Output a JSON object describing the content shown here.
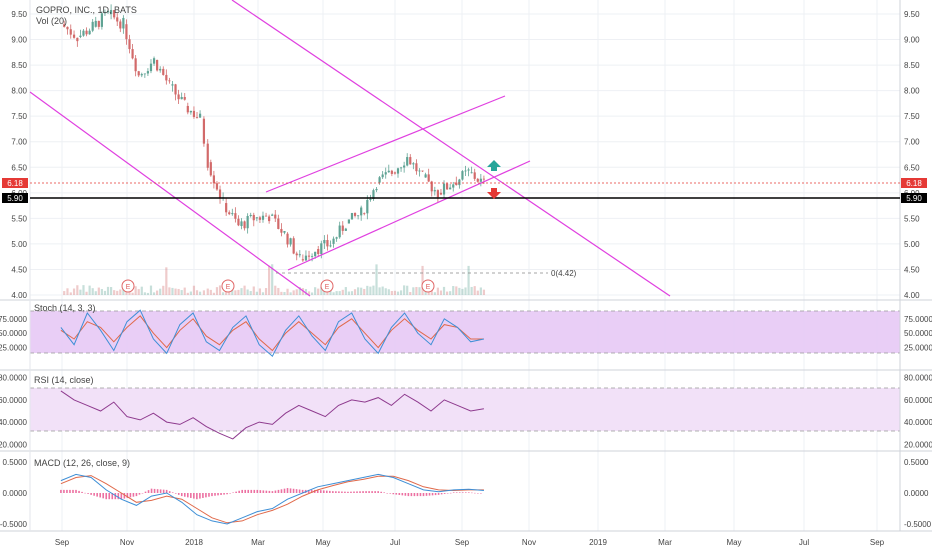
{
  "colors": {
    "up": "#5fa394",
    "down": "#d26a6a",
    "trendline": "#e040e0",
    "stoch_k": "#3e8fd6",
    "stoch_d": "#e0694a",
    "rsi": "#8e3a8e",
    "macd": "#3e8fd6",
    "signal": "#e0694a",
    "hist": "#e74c8a",
    "band_fill": "#e7c9f5",
    "grid": "#eef0f4",
    "current_price": "#e53935",
    "support": "#000000",
    "arrow_up": "#26a69a",
    "arrow_down": "#e53935"
  },
  "icons": {
    "arrow_up": "arrow-up-icon",
    "arrow_down": "arrow-down-icon",
    "earnings": "earnings-marker-icon"
  },
  "chart_data": {
    "type": "candlestick",
    "symbol_title": "GOPRO, INC., 1D, BATS",
    "volume_label": "Vol (20)",
    "x_ticks": [
      "Sep",
      "Nov",
      "2018",
      "Mar",
      "May",
      "Jul",
      "Sep",
      "Nov",
      "2019",
      "Mar",
      "May",
      "Jul",
      "Sep"
    ],
    "price_axis": {
      "ticks": [
        "9.50",
        "9.00",
        "8.50",
        "8.00",
        "7.50",
        "7.00",
        "6.50",
        "6.00",
        "5.50",
        "5.00",
        "4.50",
        "4.00"
      ],
      "range": [
        4.0,
        9.6
      ]
    },
    "current_price": "6.18",
    "support_price": "5.90",
    "low_annotation": "0(4.42)",
    "earnings_marker": "E",
    "price_series": [
      {
        "date": "2017-08-31",
        "close": 9.3
      },
      {
        "date": "2017-09-15",
        "close": 9.05
      },
      {
        "date": "2017-09-29",
        "close": 9.25
      },
      {
        "date": "2017-10-13",
        "close": 9.5
      },
      {
        "date": "2017-10-27",
        "close": 9.3
      },
      {
        "date": "2017-11-10",
        "close": 8.3
      },
      {
        "date": "2017-11-24",
        "close": 8.6
      },
      {
        "date": "2017-12-08",
        "close": 8.1
      },
      {
        "date": "2017-12-22",
        "close": 7.7
      },
      {
        "date": "2018-01-05",
        "close": 7.45
      },
      {
        "date": "2018-01-12",
        "close": 6.6
      },
      {
        "date": "2018-01-26",
        "close": 5.8
      },
      {
        "date": "2018-02-09",
        "close": 5.35
      },
      {
        "date": "2018-02-23",
        "close": 5.5
      },
      {
        "date": "2018-03-09",
        "close": 5.55
      },
      {
        "date": "2018-03-23",
        "close": 5.2
      },
      {
        "date": "2018-04-06",
        "close": 4.7
      },
      {
        "date": "2018-04-20",
        "close": 4.9
      },
      {
        "date": "2018-05-04",
        "close": 5.0
      },
      {
        "date": "2018-05-18",
        "close": 5.4
      },
      {
        "date": "2018-06-01",
        "close": 5.6
      },
      {
        "date": "2018-06-15",
        "close": 6.2
      },
      {
        "date": "2018-06-29",
        "close": 6.4
      },
      {
        "date": "2018-07-13",
        "close": 6.7
      },
      {
        "date": "2018-07-27",
        "close": 6.3
      },
      {
        "date": "2018-08-10",
        "close": 6.0
      },
      {
        "date": "2018-08-24",
        "close": 6.2
      },
      {
        "date": "2018-09-07",
        "close": 6.4
      },
      {
        "date": "2018-09-21",
        "close": 6.18
      }
    ],
    "stoch": {
      "title": "Stoch (14, 3, 3)",
      "ticks": [
        "75.0000",
        "50.0000",
        "25.0000"
      ],
      "range": [
        0,
        100
      ],
      "band": [
        20,
        80
      ],
      "k": [
        60,
        30,
        85,
        55,
        20,
        70,
        90,
        40,
        15,
        65,
        85,
        35,
        20,
        60,
        80,
        30,
        10,
        55,
        80,
        45,
        20,
        70,
        85,
        40,
        15,
        60,
        85,
        50,
        30,
        75,
        60,
        35,
        40
      ],
      "d": [
        55,
        40,
        70,
        60,
        35,
        60,
        80,
        50,
        25,
        55,
        75,
        45,
        30,
        55,
        70,
        40,
        20,
        50,
        70,
        50,
        30,
        60,
        75,
        50,
        25,
        55,
        75,
        55,
        40,
        65,
        60,
        40,
        40
      ]
    },
    "rsi": {
      "title": "RSI (14, close)",
      "ticks": [
        "80.0000",
        "60.0000",
        "40.0000",
        "20.0000"
      ],
      "range": [
        15,
        85
      ],
      "band": [
        30,
        70
      ],
      "values": [
        68,
        60,
        55,
        50,
        58,
        45,
        42,
        48,
        40,
        38,
        44,
        36,
        30,
        25,
        35,
        40,
        38,
        48,
        55,
        50,
        45,
        55,
        60,
        58,
        62,
        55,
        65,
        58,
        50,
        60,
        55,
        50,
        52
      ]
    },
    "macd": {
      "title": "MACD (12, 26, close, 9)",
      "ticks": [
        "0.5000",
        "0.0000",
        "-0.5000"
      ],
      "range": [
        -0.6,
        0.6
      ],
      "macd": [
        0.2,
        0.3,
        0.25,
        0.05,
        -0.1,
        -0.2,
        -0.05,
        0.0,
        -0.15,
        -0.35,
        -0.45,
        -0.5,
        -0.4,
        -0.3,
        -0.25,
        -0.1,
        0.0,
        0.1,
        0.15,
        0.2,
        0.25,
        0.3,
        0.25,
        0.15,
        0.05,
        0.02,
        0.05,
        0.06,
        0.04
      ],
      "signal": [
        0.15,
        0.25,
        0.28,
        0.15,
        0.0,
        -0.15,
        -0.12,
        -0.05,
        -0.1,
        -0.25,
        -0.4,
        -0.48,
        -0.45,
        -0.35,
        -0.28,
        -0.18,
        -0.05,
        0.05,
        0.12,
        0.18,
        0.22,
        0.27,
        0.27,
        0.2,
        0.1,
        0.05,
        0.04,
        0.05,
        0.05
      ]
    }
  }
}
